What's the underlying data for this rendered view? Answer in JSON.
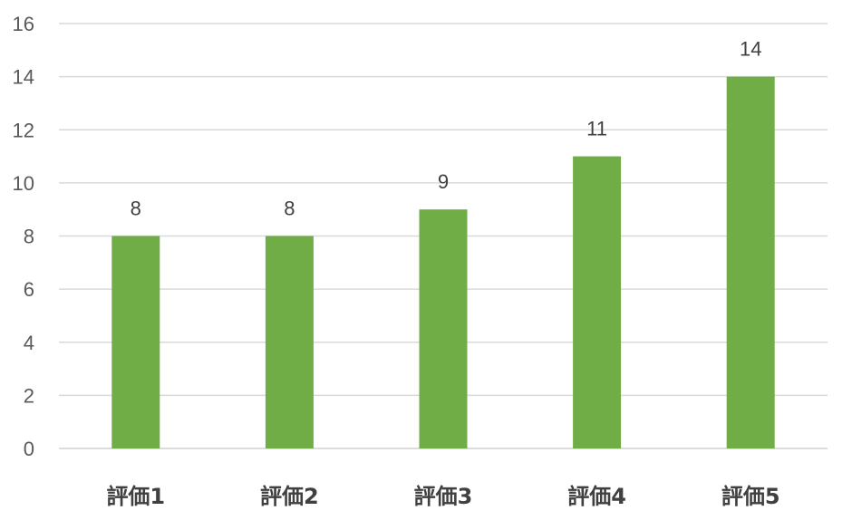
{
  "chart_data": {
    "type": "bar",
    "categories": [
      "評価1",
      "評価2",
      "評価3",
      "評価4",
      "評価5"
    ],
    "values": [
      8,
      8,
      9,
      11,
      14
    ],
    "ylim": [
      0,
      16
    ],
    "yticks": [
      0,
      2,
      4,
      6,
      8,
      10,
      12,
      14,
      16
    ],
    "grid": true,
    "data_labels": true,
    "bar_color": "#70ad47"
  }
}
